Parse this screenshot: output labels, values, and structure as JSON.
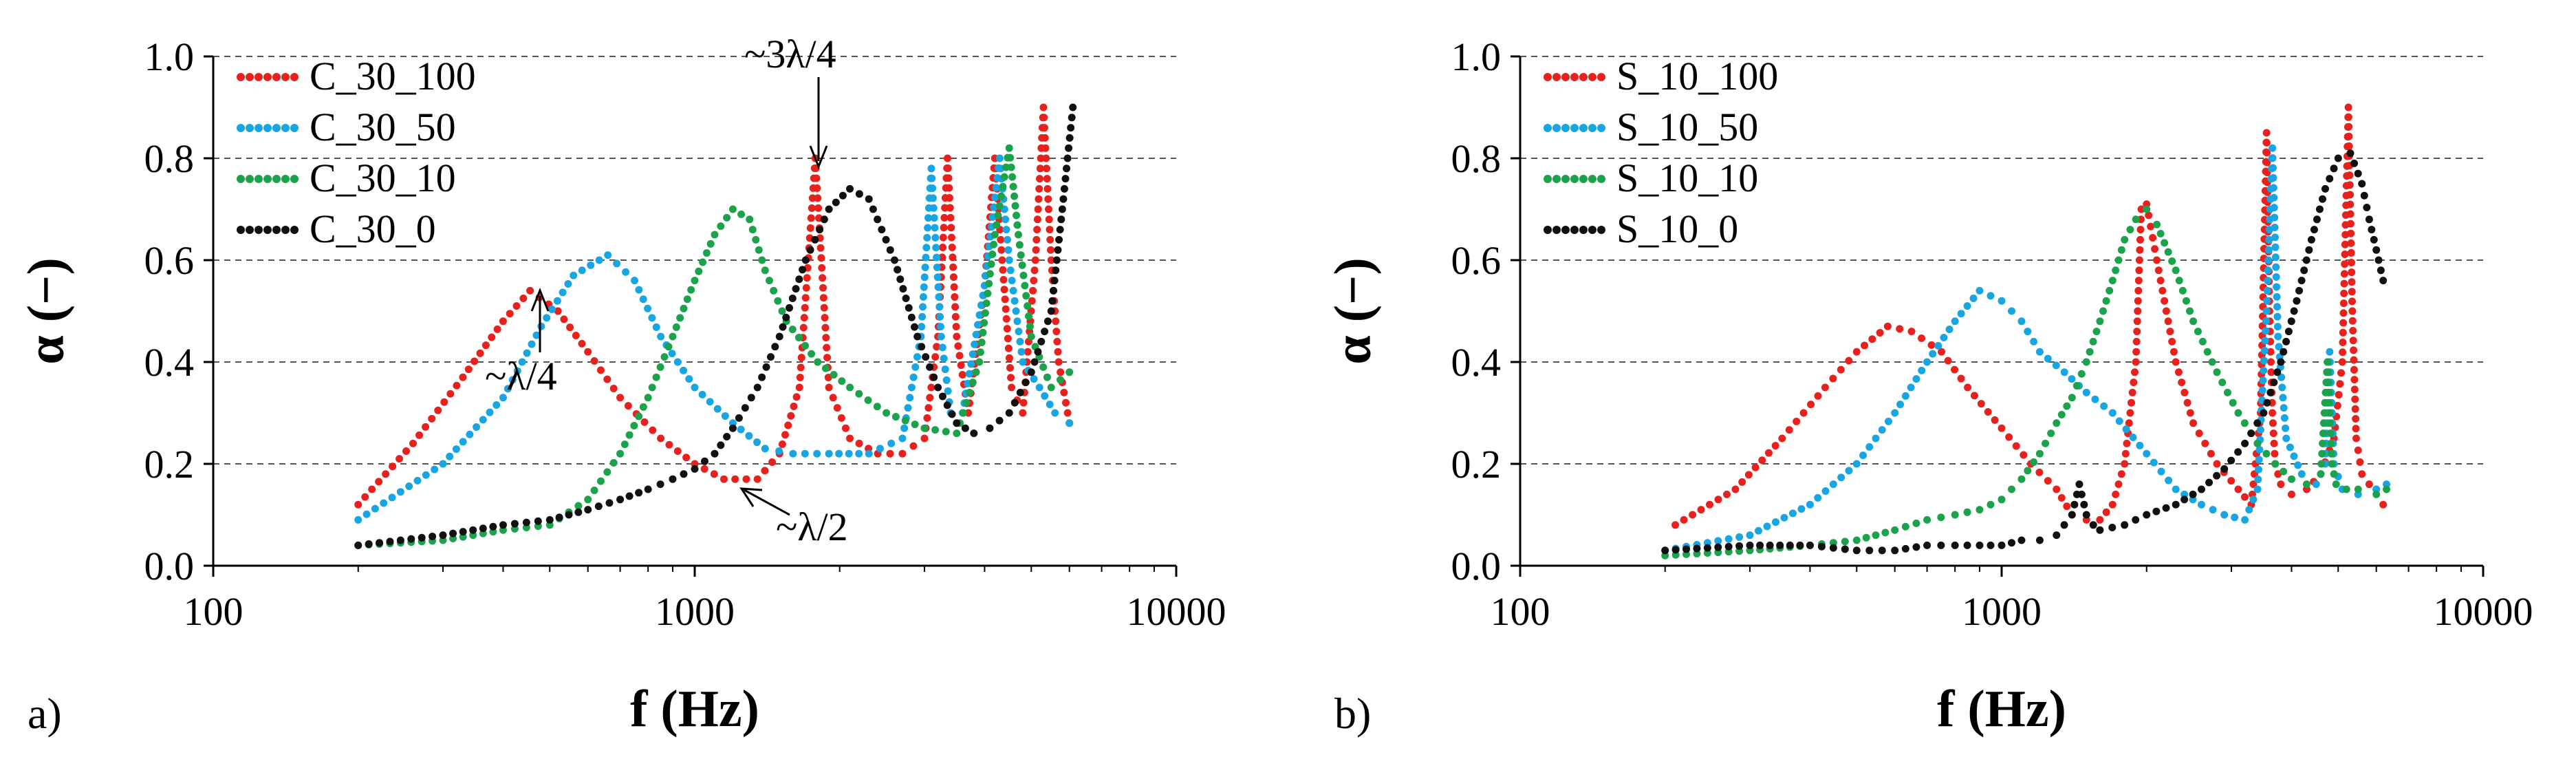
{
  "chart_data": [
    {
      "type": "scatter",
      "panel_label": "a)",
      "xlabel": "f (Hz)",
      "ylabel": "α (−)",
      "xscale": "log",
      "xlim": [
        100,
        10000
      ],
      "ylim": [
        0.0,
        1.0
      ],
      "xticks": [
        "100",
        "1000",
        "10000"
      ],
      "yticks": [
        "0.0",
        "0.2",
        "0.4",
        "0.6",
        "0.8",
        "1.0"
      ],
      "grid": "horizontal dashed",
      "legend_position": "top-left",
      "series": [
        {
          "name": "C_30_100",
          "color": "#e8211d",
          "x": [
            200,
            260,
            330,
            400,
            455,
            520,
            600,
            700,
            850,
            1000,
            1150,
            1350,
            1500,
            1650,
            1780,
            1900,
            2100,
            2400,
            2700,
            3000,
            3200,
            3350,
            3500,
            3700,
            4000,
            4200,
            4350,
            4550,
            4800,
            5100,
            5300,
            5500,
            5700,
            6000
          ],
          "y": [
            0.12,
            0.24,
            0.37,
            0.48,
            0.54,
            0.5,
            0.42,
            0.33,
            0.25,
            0.2,
            0.17,
            0.17,
            0.22,
            0.35,
            0.8,
            0.35,
            0.25,
            0.22,
            0.22,
            0.25,
            0.45,
            0.8,
            0.45,
            0.3,
            0.55,
            0.8,
            0.6,
            0.35,
            0.3,
            0.6,
            0.9,
            0.6,
            0.4,
            0.28
          ]
        },
        {
          "name": "C_30_50",
          "color": "#17a6e3",
          "x": [
            200,
            300,
            400,
            480,
            560,
            660,
            750,
            850,
            1000,
            1200,
            1400,
            1600,
            1900,
            2300,
            2700,
            2950,
            3100,
            3250,
            3400,
            3600,
            4000,
            4300,
            4500,
            4800,
            5200,
            5600,
            6000
          ],
          "y": [
            0.09,
            0.2,
            0.33,
            0.47,
            0.57,
            0.61,
            0.56,
            0.45,
            0.35,
            0.28,
            0.23,
            0.22,
            0.22,
            0.22,
            0.25,
            0.45,
            0.78,
            0.45,
            0.3,
            0.3,
            0.55,
            0.8,
            0.6,
            0.4,
            0.35,
            0.3,
            0.28
          ]
        },
        {
          "name": "C_30_10",
          "color": "#1aa34a",
          "x": [
            200,
            300,
            400,
            500,
            600,
            700,
            800,
            900,
            1000,
            1100,
            1200,
            1300,
            1400,
            1550,
            1800,
            2100,
            2500,
            3000,
            3500,
            3900,
            4200,
            4500,
            4700,
            5000,
            5500,
            6000
          ],
          "y": [
            0.04,
            0.05,
            0.07,
            0.08,
            0.13,
            0.22,
            0.33,
            0.45,
            0.56,
            0.65,
            0.7,
            0.68,
            0.58,
            0.48,
            0.4,
            0.35,
            0.3,
            0.27,
            0.26,
            0.4,
            0.65,
            0.82,
            0.65,
            0.45,
            0.35,
            0.38
          ]
        },
        {
          "name": "C_30_0",
          "color": "#111111",
          "x": [
            200,
            300,
            400,
            500,
            600,
            700,
            800,
            900,
            1000,
            1100,
            1200,
            1350,
            1500,
            1700,
            1900,
            2100,
            2300,
            2600,
            2900,
            3200,
            3500,
            3800,
            4100,
            4500,
            5000,
            5500,
            5800,
            6100
          ],
          "y": [
            0.04,
            0.06,
            0.08,
            0.09,
            0.11,
            0.13,
            0.15,
            0.17,
            0.19,
            0.22,
            0.27,
            0.35,
            0.45,
            0.6,
            0.7,
            0.74,
            0.72,
            0.6,
            0.45,
            0.35,
            0.28,
            0.26,
            0.27,
            0.3,
            0.38,
            0.5,
            0.7,
            0.9
          ]
        }
      ],
      "annotations": [
        {
          "text": "~λ/4",
          "x": 460,
          "y": 0.54
        },
        {
          "text": "~3λ/4",
          "x": 1780,
          "y": 0.8
        },
        {
          "text": "~λ/2",
          "x": 1350,
          "y": 0.17
        }
      ]
    },
    {
      "type": "scatter",
      "panel_label": "b)",
      "xlabel": "f (Hz)",
      "ylabel": "α (−)",
      "xscale": "log",
      "xlim": [
        100,
        10000
      ],
      "ylim": [
        0.0,
        1.0
      ],
      "xticks": [
        "100",
        "1000",
        "10000"
      ],
      "yticks": [
        "0.0",
        "0.2",
        "0.4",
        "0.6",
        "0.8",
        "1.0"
      ],
      "grid": "horizontal dashed",
      "legend_position": "top-left",
      "series": [
        {
          "name": "S_10_100",
          "color": "#e8211d",
          "x": [
            210,
            280,
            350,
            430,
            500,
            580,
            650,
            750,
            850,
            1000,
            1150,
            1300,
            1400,
            1500,
            1600,
            1700,
            1800,
            1900,
            1950,
            2000,
            2100,
            2300,
            2500,
            2800,
            3100,
            3300,
            3450,
            3550,
            3600,
            3650,
            3700,
            3800,
            4000,
            4300,
            4600,
            4900,
            5100,
            5250,
            5350,
            5450,
            5600,
            5800,
            6000,
            6200
          ],
          "y": [
            0.08,
            0.15,
            0.25,
            0.35,
            0.42,
            0.47,
            0.46,
            0.42,
            0.35,
            0.27,
            0.2,
            0.15,
            0.1,
            0.09,
            0.09,
            0.12,
            0.2,
            0.4,
            0.7,
            0.71,
            0.6,
            0.4,
            0.28,
            0.2,
            0.15,
            0.12,
            0.3,
            0.85,
            0.5,
            0.3,
            0.2,
            0.16,
            0.14,
            0.15,
            0.18,
            0.25,
            0.4,
            0.9,
            0.5,
            0.25,
            0.18,
            0.16,
            0.15,
            0.12
          ]
        },
        {
          "name": "S_10_50",
          "color": "#17a6e3",
          "x": [
            200,
            300,
            400,
            500,
            600,
            700,
            800,
            900,
            1000,
            1100,
            1200,
            1350,
            1500,
            1700,
            2000,
            2300,
            2600,
            2900,
            3200,
            3400,
            3550,
            3650,
            3750,
            3900,
            4200,
            4500,
            4700,
            4800,
            4900,
            5100,
            5500,
            6000,
            6300
          ],
          "y": [
            0.03,
            0.06,
            0.12,
            0.2,
            0.3,
            0.4,
            0.48,
            0.54,
            0.52,
            0.48,
            0.42,
            0.38,
            0.34,
            0.3,
            0.22,
            0.15,
            0.12,
            0.1,
            0.09,
            0.15,
            0.5,
            0.82,
            0.45,
            0.25,
            0.18,
            0.16,
            0.2,
            0.42,
            0.2,
            0.15,
            0.14,
            0.15,
            0.16
          ]
        },
        {
          "name": "S_10_10",
          "color": "#1aa34a",
          "x": [
            200,
            300,
            400,
            500,
            600,
            700,
            800,
            900,
            1000,
            1100,
            1200,
            1300,
            1400,
            1500,
            1600,
            1700,
            1800,
            1900,
            2000,
            2100,
            2300,
            2500,
            2800,
            3100,
            3400,
            3700,
            4000,
            4300,
            4600,
            4750,
            4850,
            4950,
            5200,
            5500,
            6000,
            6300
          ],
          "y": [
            0.02,
            0.03,
            0.04,
            0.05,
            0.07,
            0.09,
            0.1,
            0.11,
            0.13,
            0.17,
            0.22,
            0.28,
            0.33,
            0.4,
            0.48,
            0.56,
            0.64,
            0.68,
            0.7,
            0.67,
            0.58,
            0.48,
            0.38,
            0.3,
            0.24,
            0.2,
            0.17,
            0.16,
            0.18,
            0.4,
            0.2,
            0.16,
            0.15,
            0.15,
            0.14,
            0.15
          ]
        },
        {
          "name": "S_10_0",
          "color": "#111111",
          "x": [
            200,
            300,
            400,
            500,
            600,
            700,
            800,
            900,
            1000,
            1100,
            1200,
            1300,
            1400,
            1450,
            1500,
            1550,
            1600,
            1800,
            2000,
            2300,
            2600,
            2900,
            3200,
            3500,
            3800,
            4100,
            4400,
            4700,
            5000,
            5300,
            5600,
            5800,
            6000,
            6200
          ],
          "y": [
            0.03,
            0.04,
            0.04,
            0.03,
            0.03,
            0.04,
            0.04,
            0.04,
            0.04,
            0.05,
            0.05,
            0.06,
            0.1,
            0.16,
            0.1,
            0.08,
            0.07,
            0.08,
            0.1,
            0.12,
            0.15,
            0.19,
            0.24,
            0.3,
            0.4,
            0.52,
            0.64,
            0.74,
            0.8,
            0.81,
            0.75,
            0.68,
            0.62,
            0.56
          ]
        }
      ],
      "annotations": []
    }
  ]
}
